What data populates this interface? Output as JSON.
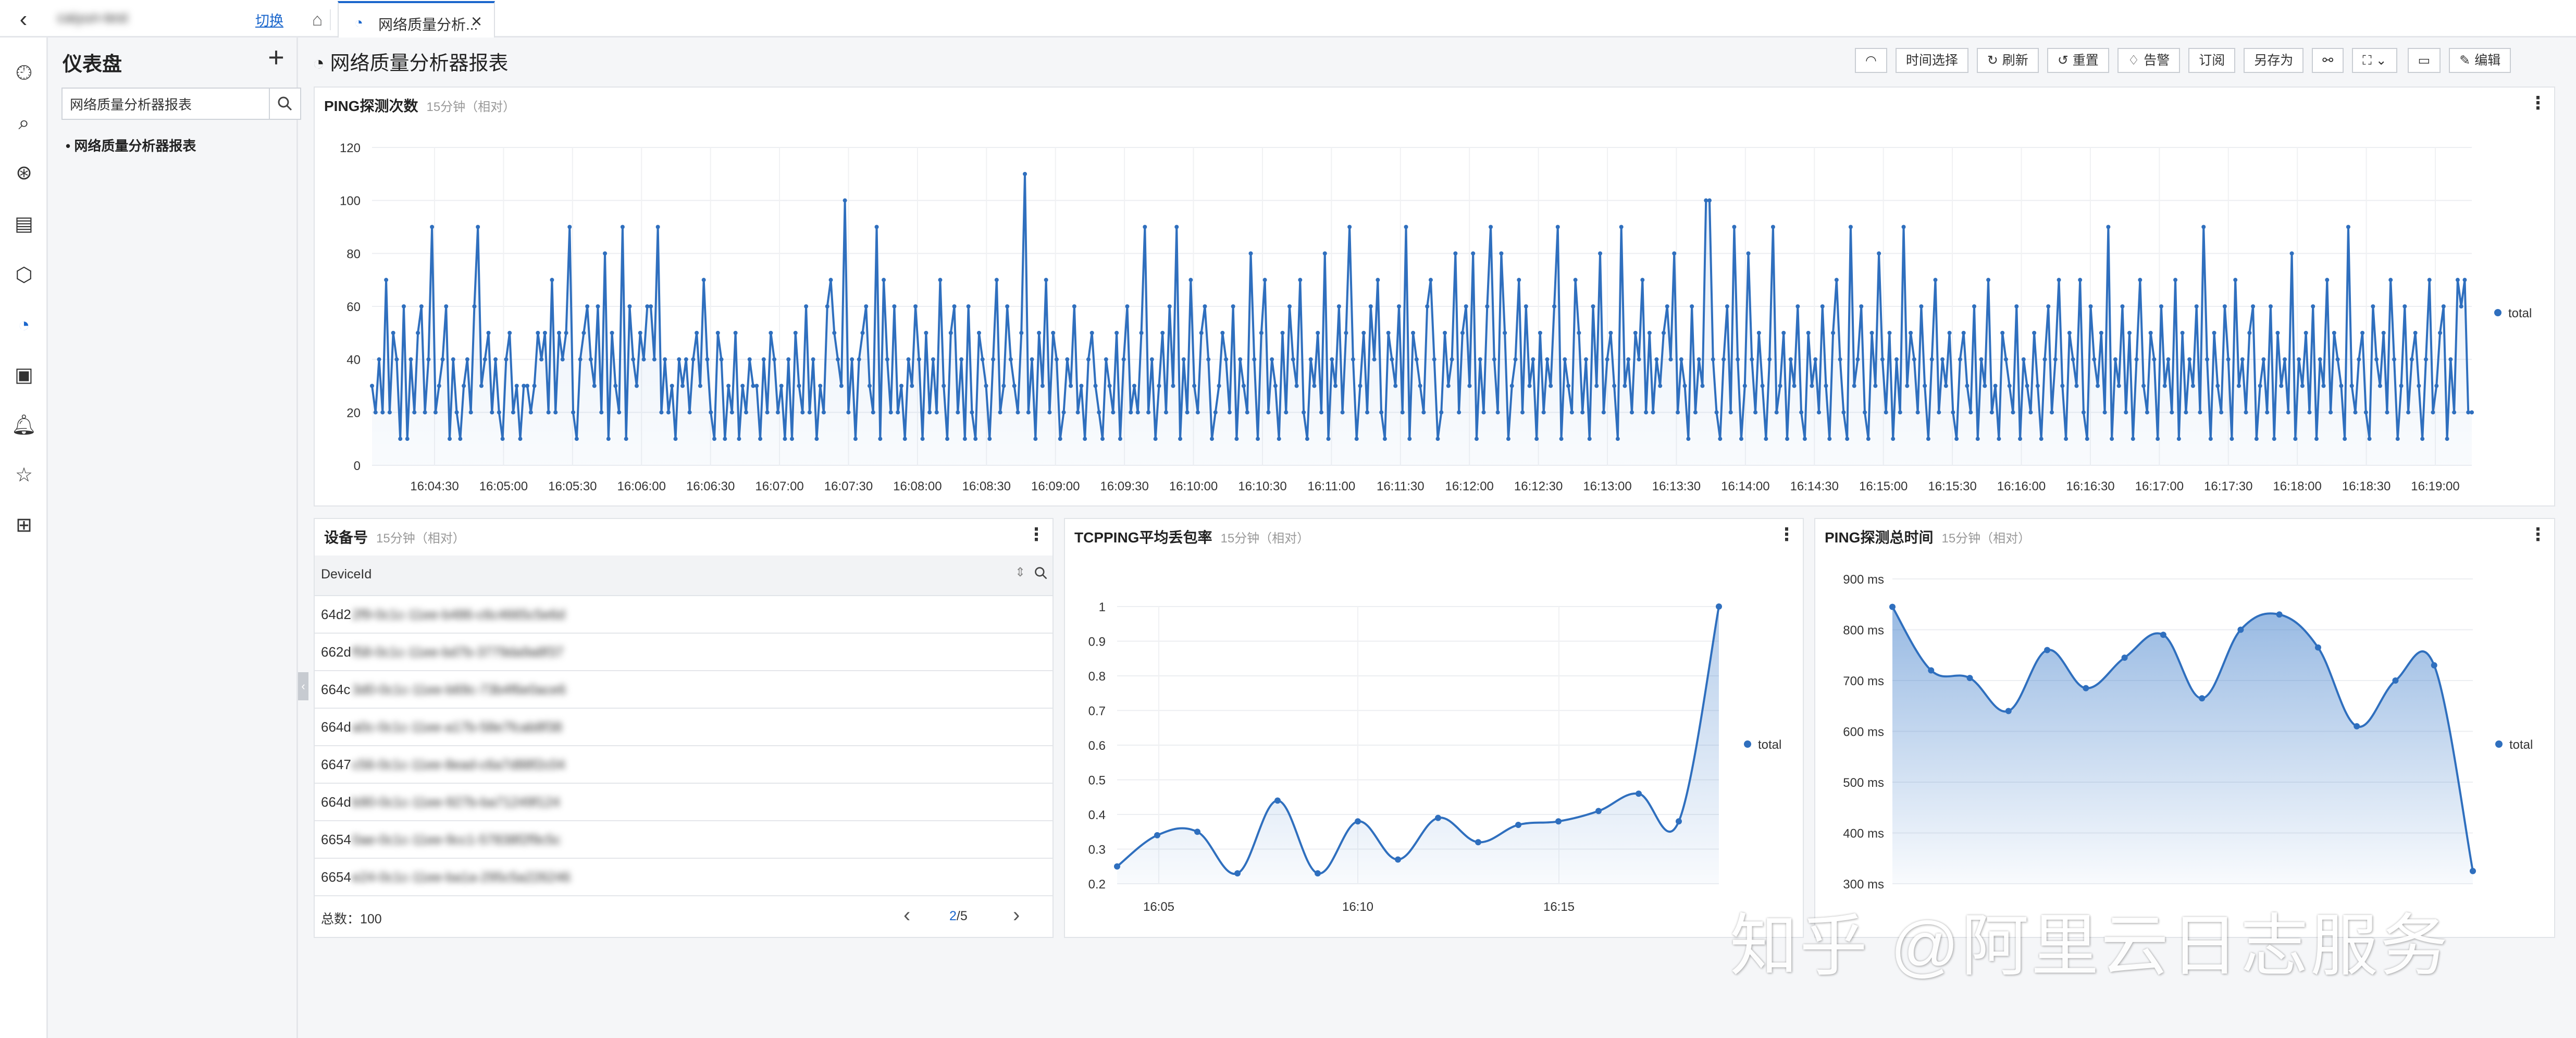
{
  "topbar": {
    "project_name": "caiyun-test",
    "switch_label": "切换",
    "tab_label": "网络质量分析...",
    "tab_close": "×"
  },
  "rail_icons": [
    "clock-icon",
    "search-log-icon",
    "search-chart-icon",
    "table-icon",
    "cube-icon",
    "dashboard-icon",
    "report-icon",
    "bell-icon",
    "star-icon",
    "grid-icon"
  ],
  "leftnav": {
    "title": "仪表盘",
    "add": "+",
    "search_value": "网络质量分析器报表",
    "item": "• 网络质量分析器报表"
  },
  "dashboard": {
    "title": "网络质量分析器报表",
    "toolbar": {
      "time_select": "时间选择",
      "refresh": "刷新",
      "reset": "重置",
      "alert": "告警",
      "subscribe": "订阅",
      "save_as": "另存为",
      "edit": "编辑"
    }
  },
  "panels": {
    "ping_count": {
      "title": "PING探测次数",
      "sub": "15分钟（相对）"
    },
    "device": {
      "title": "设备号",
      "sub": "15分钟（相对）"
    },
    "tcpping": {
      "title": "TCPPING平均丢包率",
      "sub": "15分钟（相对）"
    },
    "ping_time": {
      "title": "PING探测总时间",
      "sub": "15分钟（相对）"
    }
  },
  "table": {
    "column": "DeviceId",
    "rows": [
      {
        "prefix": "64d2",
        "rest": "2f9-0c1c-11ee-b486-c6c4665c5e6d"
      },
      {
        "prefix": "662d",
        "rest": "f58-0c1c-11ee-bd7b-3779da9a8f37"
      },
      {
        "prefix": "664c",
        "rest": "3d0-0c1c-11ee-b69c-73b4f6e0ace6"
      },
      {
        "prefix": "664d",
        "rest": "a0c-0c1c-11ee-a17b-58e7fcab8f38"
      },
      {
        "prefix": "6647",
        "rest": "c56-0c1c-11ee-8ead-c6a7d88f2c04"
      },
      {
        "prefix": "664d",
        "rest": "b90-0c1c-11ee-927b-ba71249f124"
      },
      {
        "prefix": "6654",
        "rest": "0ae-0c1c-11ee-9cc1-57838f2f9c5c"
      },
      {
        "prefix": "6654",
        "rest": "e24-0c1c-11ee-ba1a-295c5a226246"
      }
    ],
    "total": "总数：100",
    "page_current": "2",
    "page_total": "/5"
  },
  "watermark": "知乎 @阿里云日志服务",
  "chart_data": [
    {
      "id": "ping_count",
      "type": "line",
      "title": "PING探测次数",
      "legend": "right",
      "series": [
        {
          "name": "total"
        }
      ],
      "x_ticks": [
        "16:04:30",
        "16:05:00",
        "16:05:30",
        "16:06:00",
        "16:06:30",
        "16:07:00",
        "16:07:30",
        "16:08:00",
        "16:08:30",
        "16:09:00",
        "16:09:30",
        "16:10:00",
        "16:10:30",
        "16:11:00",
        "16:11:30",
        "16:12:00",
        "16:12:30",
        "16:13:00",
        "16:13:30",
        "16:14:00",
        "16:14:30",
        "16:15:00",
        "16:15:30",
        "16:16:00",
        "16:16:30",
        "16:17:00",
        "16:17:30",
        "16:18:00",
        "16:18:30",
        "16:19:00"
      ],
      "ylim": [
        0,
        120
      ],
      "y_ticks": [
        0,
        20,
        40,
        60,
        80,
        100,
        120
      ],
      "values": [
        30,
        20,
        40,
        20,
        70,
        20,
        50,
        40,
        10,
        60,
        10,
        40,
        20,
        50,
        60,
        20,
        40,
        90,
        20,
        30,
        40,
        60,
        10,
        40,
        20,
        10,
        30,
        40,
        20,
        60,
        90,
        30,
        40,
        50,
        20,
        40,
        20,
        10,
        40,
        50,
        20,
        30,
        10,
        30,
        30,
        20,
        30,
        50,
        40,
        50,
        20,
        70,
        20,
        50,
        40,
        50,
        90,
        20,
        10,
        40,
        50,
        60,
        40,
        30,
        60,
        20,
        80,
        10,
        50,
        30,
        20,
        90,
        10,
        60,
        40,
        30,
        50,
        40,
        60,
        60,
        40,
        90,
        20,
        40,
        20,
        30,
        10,
        40,
        30,
        40,
        20,
        40,
        50,
        30,
        70,
        40,
        20,
        10,
        50,
        40,
        10,
        30,
        20,
        50,
        10,
        30,
        20,
        40,
        30,
        30,
        10,
        40,
        20,
        50,
        40,
        20,
        30,
        10,
        40,
        10,
        50,
        30,
        20,
        60,
        20,
        40,
        10,
        30,
        20,
        60,
        70,
        50,
        40,
        30,
        100,
        20,
        40,
        10,
        40,
        50,
        60,
        30,
        20,
        90,
        10,
        70,
        40,
        20,
        60,
        20,
        30,
        10,
        40,
        30,
        60,
        40,
        10,
        50,
        20,
        40,
        20,
        70,
        30,
        10,
        50,
        60,
        20,
        40,
        10,
        60,
        20,
        10,
        50,
        40,
        30,
        10,
        40,
        70,
        20,
        30,
        60,
        40,
        30,
        20,
        50,
        110,
        20,
        40,
        10,
        50,
        30,
        70,
        20,
        50,
        40,
        10,
        20,
        40,
        30,
        60,
        20,
        30,
        10,
        40,
        50,
        30,
        20,
        10,
        40,
        30,
        20,
        50,
        10,
        40,
        60,
        20,
        30,
        20,
        50,
        90,
        20,
        40,
        10,
        30,
        50,
        20,
        60,
        30,
        90,
        10,
        40,
        20,
        70,
        30,
        20,
        50,
        60,
        40,
        10,
        20,
        30,
        50,
        40,
        20,
        60,
        10,
        40,
        30,
        20,
        80,
        40,
        10,
        50,
        70,
        20,
        40,
        30,
        10,
        50,
        20,
        60,
        40,
        30,
        70,
        20,
        10,
        40,
        30,
        50,
        20,
        80,
        10,
        40,
        30,
        60,
        20,
        50,
        90,
        40,
        10,
        30,
        50,
        20,
        60,
        40,
        70,
        20,
        10,
        50,
        40,
        30,
        60,
        20,
        90,
        10,
        50,
        40,
        30,
        20,
        60,
        70,
        40,
        10,
        20,
        50,
        30,
        40,
        80,
        20,
        50,
        60,
        30,
        80,
        10,
        40,
        20,
        60,
        90,
        40,
        20,
        80,
        50,
        10,
        30,
        40,
        70,
        20,
        60,
        30,
        40,
        10,
        50,
        20,
        40,
        30,
        60,
        90,
        10,
        40,
        30,
        20,
        70,
        50,
        20,
        40,
        10,
        60,
        30,
        80,
        20,
        40,
        50,
        30,
        10,
        90,
        30,
        40,
        20,
        50,
        40,
        70,
        20,
        50,
        20,
        40,
        30,
        50,
        60,
        40,
        80,
        20,
        40,
        30,
        10,
        60,
        20,
        40,
        30,
        100,
        100,
        40,
        20,
        10,
        40,
        60,
        20,
        90,
        40,
        10,
        30,
        80,
        40,
        20,
        50,
        30,
        10,
        40,
        90,
        20,
        30,
        50,
        10,
        40,
        30,
        60,
        20,
        10,
        50,
        30,
        40,
        20,
        60,
        30,
        10,
        50,
        70,
        40,
        20,
        10,
        90,
        30,
        40,
        60,
        20,
        10,
        50,
        30,
        80,
        40,
        20,
        50,
        10,
        40,
        20,
        90,
        30,
        50,
        40,
        20,
        60,
        30,
        10,
        40,
        70,
        20,
        40,
        30,
        50,
        20,
        10,
        40,
        50,
        30,
        20,
        60,
        10,
        40,
        30,
        70,
        20,
        30,
        10,
        50,
        40,
        30,
        20,
        60,
        10,
        40,
        30,
        20,
        50,
        30,
        10,
        40,
        60,
        20,
        40,
        70,
        30,
        10,
        50,
        40,
        30,
        70,
        20,
        10,
        60,
        40,
        30,
        50,
        20,
        90,
        10,
        40,
        30,
        60,
        20,
        50,
        10,
        40,
        70,
        30,
        20,
        50,
        40,
        10,
        60,
        30,
        40,
        20,
        70,
        10,
        50,
        20,
        40,
        30,
        60,
        20,
        90,
        40,
        10,
        50,
        30,
        20,
        60,
        40,
        10,
        70,
        30,
        40,
        20,
        50,
        60,
        10,
        30,
        40,
        20,
        60,
        10,
        50,
        30,
        40,
        20,
        80,
        10,
        40,
        30,
        50,
        20,
        60,
        10,
        40,
        30,
        70,
        20,
        50,
        40,
        30,
        10,
        90,
        30,
        20,
        40,
        50,
        20,
        10,
        60,
        40,
        30,
        50,
        20,
        70,
        40,
        10,
        30,
        60,
        20,
        40,
        50,
        30,
        10,
        40,
        70,
        20,
        30,
        50,
        60,
        10,
        40,
        20,
        70,
        60,
        70,
        20,
        20
      ]
    },
    {
      "id": "tcpping",
      "type": "area",
      "title": "TCPPING平均丢包率",
      "legend": "right",
      "series": [
        {
          "name": "total"
        }
      ],
      "x_ticks": [
        "16:05",
        "16:10",
        "16:15"
      ],
      "ylim": [
        0.2,
        1
      ],
      "y_ticks": [
        0.2,
        0.3,
        0.4,
        0.5,
        0.6,
        0.7,
        0.8,
        0.9,
        1
      ],
      "values": [
        0.25,
        0.34,
        0.35,
        0.23,
        0.44,
        0.23,
        0.38,
        0.27,
        0.39,
        0.32,
        0.37,
        0.38,
        0.41,
        0.46,
        0.38,
        1.0
      ]
    },
    {
      "id": "ping_time",
      "type": "area",
      "title": "PING探测总时间",
      "legend": "right",
      "series": [
        {
          "name": "total"
        }
      ],
      "ylim": [
        300,
        900
      ],
      "y_ticks": [
        "300 ms",
        "400 ms",
        "500 ms",
        "600 ms",
        "700 ms",
        "800 ms",
        "900 ms"
      ],
      "values": [
        845,
        720,
        705,
        640,
        760,
        685,
        745,
        790,
        665,
        800,
        830,
        765,
        610,
        700,
        730,
        325
      ]
    }
  ]
}
